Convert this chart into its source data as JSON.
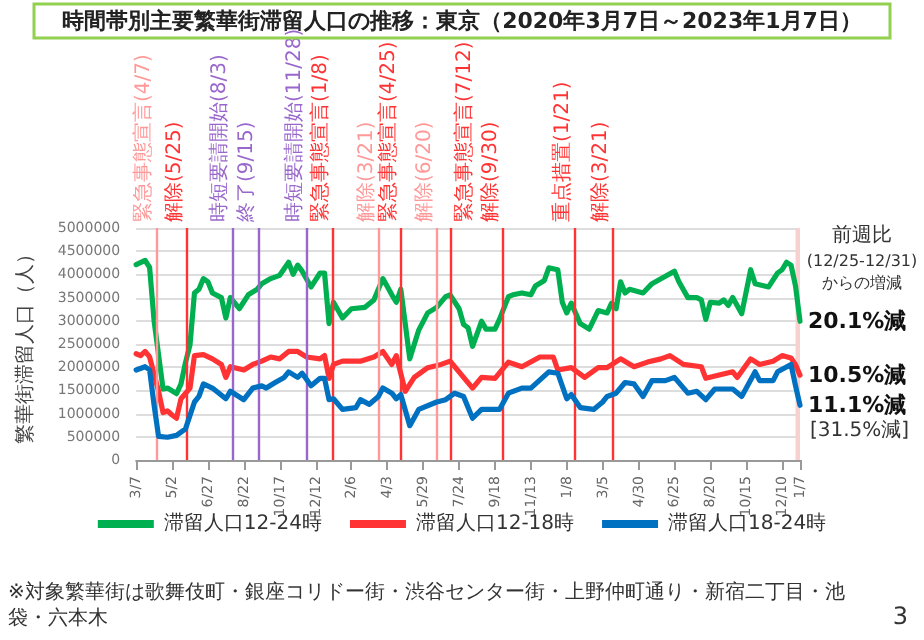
{
  "chart_data": {
    "type": "line",
    "title": "時間帯別主要繁華街滞留人口の推移：東京（2020年3月7日～2023年1月7日）",
    "ylabel": "繁華街滞留人口（人）",
    "xlim": [
      "2020-03-07",
      "2023-01-07"
    ],
    "xticks": [
      {
        "value": "2020-03-07",
        "label": "3/7"
      },
      {
        "value": "2020-05-02",
        "label": "5/2"
      },
      {
        "value": "2020-06-27",
        "label": "6/27"
      },
      {
        "value": "2020-08-22",
        "label": "8/22"
      },
      {
        "value": "2020-10-17",
        "label": "10/17"
      },
      {
        "value": "2020-12-12",
        "label": "12/12"
      },
      {
        "value": "2021-02-06",
        "label": "2/6"
      },
      {
        "value": "2021-04-03",
        "label": "4/3"
      },
      {
        "value": "2021-05-29",
        "label": "5/29"
      },
      {
        "value": "2021-07-24",
        "label": "7/24"
      },
      {
        "value": "2021-09-18",
        "label": "9/18"
      },
      {
        "value": "2021-11-13",
        "label": "11/13"
      },
      {
        "value": "2022-01-08",
        "label": "1/8"
      },
      {
        "value": "2022-03-05",
        "label": "3/5"
      },
      {
        "value": "2022-04-30",
        "label": "4/30"
      },
      {
        "value": "2022-06-25",
        "label": "6/25"
      },
      {
        "value": "2022-08-20",
        "label": "8/20"
      },
      {
        "value": "2022-10-15",
        "label": "10/15"
      },
      {
        "value": "2022-12-10",
        "label": "12/10"
      },
      {
        "value": "2023-01-07",
        "label": "1/7"
      }
    ],
    "ylim": [
      0,
      5000000
    ],
    "yticks": [
      0,
      500000,
      1000000,
      1500000,
      2000000,
      2500000,
      3000000,
      3500000,
      4000000,
      4500000,
      5000000
    ],
    "grid": "y",
    "legend": "bottom",
    "marker": "none",
    "line_style": "solid",
    "series": [
      {
        "name": "滞留人口12-24時",
        "color": "#00b050",
        "x": [
          "2020-03-07",
          "2020-03-21",
          "2020-03-28",
          "2020-04-04",
          "2020-04-18",
          "2020-04-25",
          "2020-05-09",
          "2020-05-16",
          "2020-05-23",
          "2020-05-30",
          "2020-06-06",
          "2020-06-13",
          "2020-06-20",
          "2020-06-27",
          "2020-07-04",
          "2020-07-18",
          "2020-07-25",
          "2020-08-01",
          "2020-08-15",
          "2020-08-29",
          "2020-09-12",
          "2020-09-19",
          "2020-10-03",
          "2020-10-17",
          "2020-10-31",
          "2020-11-07",
          "2020-11-14",
          "2020-11-21",
          "2020-12-05",
          "2020-12-19",
          "2020-12-26",
          "2021-01-02",
          "2021-01-09",
          "2021-01-23",
          "2021-02-06",
          "2021-02-27",
          "2021-03-13",
          "2021-03-27",
          "2021-04-10",
          "2021-04-17",
          "2021-04-24",
          "2021-05-08",
          "2021-05-22",
          "2021-06-05",
          "2021-06-19",
          "2021-07-03",
          "2021-07-10",
          "2021-07-24",
          "2021-07-31",
          "2021-08-07",
          "2021-08-14",
          "2021-08-28",
          "2021-09-04",
          "2021-09-18",
          "2021-09-25",
          "2021-10-09",
          "2021-10-16",
          "2021-10-30",
          "2021-11-13",
          "2021-11-20",
          "2021-12-04",
          "2021-12-11",
          "2021-12-25",
          "2022-01-01",
          "2022-01-08",
          "2022-01-15",
          "2022-01-29",
          "2022-02-12",
          "2022-02-26",
          "2022-03-12",
          "2022-03-19",
          "2022-03-26",
          "2022-04-02",
          "2022-04-09",
          "2022-04-16",
          "2022-05-07",
          "2022-05-21",
          "2022-06-11",
          "2022-06-25",
          "2022-07-02",
          "2022-07-16",
          "2022-07-30",
          "2022-08-06",
          "2022-08-13",
          "2022-08-20",
          "2022-09-03",
          "2022-09-10",
          "2022-09-17",
          "2022-09-24",
          "2022-10-08",
          "2022-10-22",
          "2022-10-29",
          "2022-11-19",
          "2022-12-03",
          "2022-12-10",
          "2022-12-17",
          "2022-12-24",
          "2022-12-31",
          "2023-01-07"
        ],
        "values": [
          4210000,
          4300000,
          4150000,
          3000000,
          1530000,
          1550000,
          1430000,
          1640000,
          2100000,
          2480000,
          3600000,
          3680000,
          3910000,
          3840000,
          3600000,
          3500000,
          3060000,
          3500000,
          3260000,
          3560000,
          3680000,
          3800000,
          3910000,
          3980000,
          4260000,
          4000000,
          4200000,
          4070000,
          3730000,
          4030000,
          4030000,
          2940000,
          3400000,
          3060000,
          3260000,
          3290000,
          3450000,
          3910000,
          3560000,
          3400000,
          3680000,
          2180000,
          2800000,
          3170000,
          3290000,
          3520000,
          3560000,
          3260000,
          2920000,
          2850000,
          2450000,
          2990000,
          2820000,
          2820000,
          3030000,
          3520000,
          3560000,
          3600000,
          3560000,
          3750000,
          3870000,
          4140000,
          4100000,
          3400000,
          3170000,
          3380000,
          2940000,
          2820000,
          3220000,
          3170000,
          3380000,
          3260000,
          3840000,
          3600000,
          3680000,
          3600000,
          3800000,
          3960000,
          4070000,
          3840000,
          3500000,
          3500000,
          3450000,
          3030000,
          3400000,
          3380000,
          3450000,
          3330000,
          3500000,
          3150000,
          4100000,
          3800000,
          3730000,
          4030000,
          4100000,
          4260000,
          4200000,
          3750000,
          2990000
        ]
      },
      {
        "name": "滞留人口12-18時",
        "color": "#ff3333",
        "x": [
          "2020-03-07",
          "2020-03-14",
          "2020-03-21",
          "2020-03-28",
          "2020-04-11",
          "2020-04-18",
          "2020-04-25",
          "2020-05-02",
          "2020-05-09",
          "2020-05-16",
          "2020-05-30",
          "2020-06-06",
          "2020-06-20",
          "2020-07-04",
          "2020-07-18",
          "2020-07-25",
          "2020-08-01",
          "2020-08-22",
          "2020-09-05",
          "2020-09-19",
          "2020-10-03",
          "2020-10-17",
          "2020-10-31",
          "2020-11-14",
          "2020-11-28",
          "2020-12-19",
          "2020-12-26",
          "2021-01-02",
          "2021-01-09",
          "2021-01-23",
          "2021-02-20",
          "2021-03-13",
          "2021-03-27",
          "2021-04-10",
          "2021-04-17",
          "2021-05-01",
          "2021-05-15",
          "2021-06-05",
          "2021-06-26",
          "2021-07-10",
          "2021-07-31",
          "2021-08-14",
          "2021-08-28",
          "2021-09-18",
          "2021-10-09",
          "2021-10-30",
          "2021-11-27",
          "2021-12-18",
          "2021-12-25",
          "2022-01-15",
          "2022-02-05",
          "2022-02-26",
          "2022-03-12",
          "2022-04-02",
          "2022-04-23",
          "2022-05-14",
          "2022-06-04",
          "2022-06-18",
          "2022-07-09",
          "2022-08-06",
          "2022-08-13",
          "2022-09-24",
          "2022-10-01",
          "2022-10-22",
          "2022-11-05",
          "2022-11-26",
          "2022-12-10",
          "2022-12-24",
          "2022-12-31",
          "2023-01-07"
        ],
        "values": [
          2290000,
          2250000,
          2340000,
          2220000,
          1480000,
          1020000,
          1060000,
          970000,
          900000,
          1320000,
          1550000,
          2250000,
          2270000,
          2180000,
          2060000,
          1780000,
          2010000,
          1940000,
          2060000,
          2130000,
          2220000,
          2180000,
          2340000,
          2340000,
          2220000,
          2180000,
          2250000,
          1760000,
          2060000,
          2130000,
          2130000,
          2220000,
          2340000,
          2060000,
          2250000,
          1480000,
          1780000,
          1990000,
          2060000,
          2130000,
          1780000,
          1550000,
          1780000,
          1760000,
          2110000,
          2010000,
          2220000,
          2220000,
          1940000,
          1990000,
          1780000,
          1990000,
          1990000,
          2180000,
          2010000,
          2110000,
          2180000,
          2250000,
          2060000,
          2010000,
          1760000,
          1900000,
          1780000,
          2180000,
          2060000,
          2130000,
          2250000,
          2200000,
          2050000,
          1830000
        ]
      },
      {
        "name": "滞留人口18-24時",
        "color": "#0070c0",
        "x": [
          "2020-03-07",
          "2020-03-21",
          "2020-03-28",
          "2020-04-04",
          "2020-04-11",
          "2020-04-25",
          "2020-05-09",
          "2020-05-16",
          "2020-05-23",
          "2020-06-06",
          "2020-06-13",
          "2020-06-20",
          "2020-07-04",
          "2020-07-25",
          "2020-08-01",
          "2020-08-22",
          "2020-09-05",
          "2020-09-19",
          "2020-09-26",
          "2020-10-10",
          "2020-10-24",
          "2020-10-31",
          "2020-11-14",
          "2020-11-21",
          "2020-12-05",
          "2020-12-19",
          "2020-12-26",
          "2021-01-02",
          "2021-01-09",
          "2021-01-23",
          "2021-02-13",
          "2021-02-20",
          "2021-03-06",
          "2021-03-20",
          "2021-03-27",
          "2021-04-10",
          "2021-04-17",
          "2021-04-24",
          "2021-05-08",
          "2021-05-22",
          "2021-06-19",
          "2021-07-03",
          "2021-07-17",
          "2021-07-31",
          "2021-08-07",
          "2021-08-14",
          "2021-08-28",
          "2021-09-25",
          "2021-10-09",
          "2021-10-30",
          "2021-11-13",
          "2021-12-11",
          "2021-12-25",
          "2022-01-08",
          "2022-01-15",
          "2022-01-29",
          "2022-02-19",
          "2022-03-05",
          "2022-03-12",
          "2022-03-26",
          "2022-04-09",
          "2022-04-23",
          "2022-05-07",
          "2022-05-21",
          "2022-06-11",
          "2022-06-25",
          "2022-07-16",
          "2022-07-30",
          "2022-08-13",
          "2022-08-27",
          "2022-09-24",
          "2022-10-08",
          "2022-10-29",
          "2022-11-05",
          "2022-11-26",
          "2022-12-03",
          "2022-12-24",
          "2022-12-31",
          "2023-01-07"
        ],
        "values": [
          1940000,
          2010000,
          1940000,
          1180000,
          510000,
          490000,
          530000,
          600000,
          670000,
          1250000,
          1370000,
          1640000,
          1550000,
          1320000,
          1480000,
          1300000,
          1550000,
          1600000,
          1550000,
          1670000,
          1780000,
          1900000,
          1780000,
          1870000,
          1600000,
          1760000,
          1760000,
          1300000,
          1320000,
          1090000,
          1130000,
          1300000,
          1200000,
          1370000,
          1550000,
          1440000,
          1320000,
          1410000,
          740000,
          1090000,
          1250000,
          1300000,
          1440000,
          1370000,
          1130000,
          900000,
          1090000,
          1090000,
          1440000,
          1550000,
          1550000,
          1900000,
          1870000,
          1320000,
          1410000,
          1130000,
          1090000,
          1250000,
          1370000,
          1440000,
          1670000,
          1640000,
          1370000,
          1710000,
          1710000,
          1780000,
          1440000,
          1480000,
          1300000,
          1530000,
          1530000,
          1370000,
          1900000,
          1710000,
          1710000,
          1900000,
          2060000,
          1600000,
          1180000
        ]
      }
    ],
    "ref_lines": [
      {
        "axis": "x",
        "value": "2020-04-07",
        "label": "緊急事態宣言(4/7)",
        "color": "#ff9999"
      },
      {
        "axis": "x",
        "value": "2020-05-25",
        "label": "解除(5/25)",
        "color": "#ff3333"
      },
      {
        "axis": "x",
        "value": "2020-08-03",
        "label": "時短要請開始(8/3)",
        "color": "#9966cc"
      },
      {
        "axis": "x",
        "value": "2020-09-15",
        "label": "終了(9/15)",
        "color": "#9966cc"
      },
      {
        "axis": "x",
        "value": "2020-11-28",
        "label": "時短要請開始(11/28)",
        "color": "#9966cc"
      },
      {
        "axis": "x",
        "value": "2021-01-08",
        "label": "緊急事態宣言(1/8)",
        "color": "#ff3333"
      },
      {
        "axis": "x",
        "value": "2021-03-21",
        "label": "解除(3/21)",
        "color": "#ff9999"
      },
      {
        "axis": "x",
        "value": "2021-04-25",
        "label": "緊急事態宣言(4/25)",
        "color": "#ff3333"
      },
      {
        "axis": "x",
        "value": "2021-06-20",
        "label": "解除(6/20)",
        "color": "#ff9999"
      },
      {
        "axis": "x",
        "value": "2021-07-12",
        "label": "緊急事態宣言(7/12)",
        "color": "#ff3333"
      },
      {
        "axis": "x",
        "value": "2021-09-30",
        "label": "解除(9/30)",
        "color": "#ff3333"
      },
      {
        "axis": "x",
        "value": "2022-01-21",
        "label": "重点措置(1/21)",
        "color": "#ff3333"
      },
      {
        "axis": "x",
        "value": "2022-03-21",
        "label": "解除(3/21)",
        "color": "#ff3333"
      }
    ],
    "bands": [
      {
        "axis": "x",
        "from": "2022-12-31",
        "to": "2023-01-07",
        "color": "#f8d0d0"
      }
    ],
    "annotations": [
      "前週比",
      "(12/25-12/31)\nからの増減",
      {
        "text": "20.1%減",
        "x": "2023-01-07",
        "y": 2990000
      },
      {
        "text": "10.5%減",
        "x": "2023-01-07",
        "y": 1830000
      },
      {
        "text": "11.1%減",
        "x": "2023-01-07",
        "y": 1180000
      },
      "[31.5%減]",
      "※対象繁華街は歌舞伎町・銀座コリドー街・渋谷センター街・上野仲町通り・新宿二丁目・池袋・六本木",
      "3"
    ]
  }
}
